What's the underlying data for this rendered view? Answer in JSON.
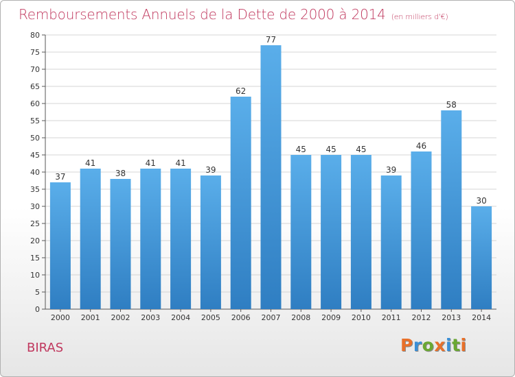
{
  "header": {
    "title": "Remboursements Annuels de la Dette de 2000 à 2014",
    "unit": "(en milliers d'€)"
  },
  "footer": {
    "commune": "BIRAS",
    "logo_text": "Proxiti",
    "logo_colors": [
      "#e8702a",
      "#3a8fd6",
      "#6aa832",
      "#e8702a",
      "#3a8fd6",
      "#6aa832",
      "#e8702a"
    ]
  },
  "chart_data": {
    "type": "bar",
    "title": "Remboursements Annuels de la Dette de 2000 à 2014",
    "categories": [
      "2000",
      "2001",
      "2002",
      "2003",
      "2004",
      "2005",
      "2006",
      "2007",
      "2008",
      "2009",
      "2010",
      "2011",
      "2012",
      "2013",
      "2014"
    ],
    "values": [
      37,
      41,
      38,
      41,
      41,
      39,
      62,
      77,
      45,
      45,
      45,
      39,
      46,
      58,
      30
    ],
    "ylim": [
      0,
      80
    ],
    "ytick_step": 5,
    "yticks": [
      "0",
      "5",
      "10",
      "15",
      "20",
      "25",
      "30",
      "35",
      "40",
      "45",
      "50",
      "55",
      "60",
      "65",
      "70",
      "75",
      "80"
    ],
    "grid": true,
    "bar_color_top": "#5aaeea",
    "bar_color_bottom": "#2f7ec2"
  }
}
